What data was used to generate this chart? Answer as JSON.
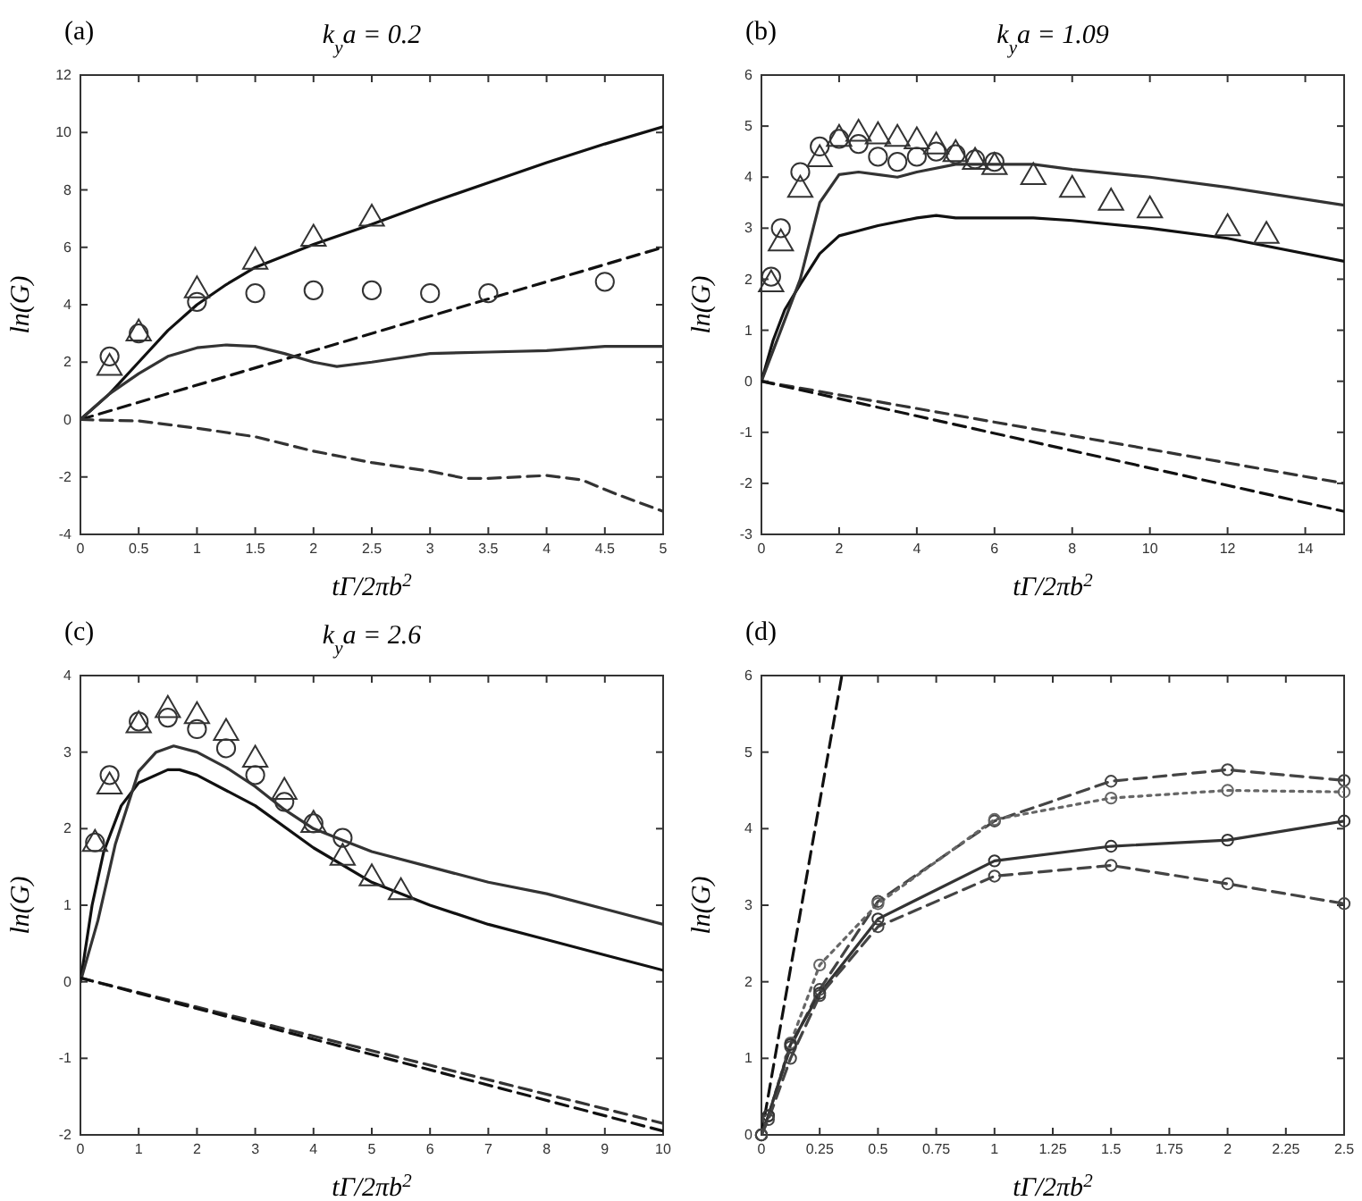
{
  "chart_data": [
    {
      "type": "line",
      "title": "k$_{y}$a = 0.2",
      "xlabel": "tΓ/2πb$^{2}$",
      "ylabel": "ln(G)",
      "annotations": [
        "(a)"
      ],
      "xlim": [
        0,
        5
      ],
      "ylim": [
        -4,
        12
      ],
      "xticks": [
        0,
        0.5,
        1,
        1.5,
        2,
        2.5,
        3,
        3.5,
        4,
        4.5,
        5
      ],
      "yticks": [
        -4,
        -2,
        0,
        2,
        4,
        6,
        8,
        10,
        12
      ],
      "series": [
        {
          "color": "#111111",
          "line_style": "solid",
          "x": [
            0,
            0.25,
            0.5,
            0.75,
            1,
            1.25,
            1.5,
            2,
            2.5,
            3,
            3.5,
            4,
            4.5,
            5
          ],
          "values": [
            0,
            0.9,
            2.0,
            3.1,
            4.0,
            4.7,
            5.3,
            6.1,
            6.8,
            7.55,
            8.25,
            8.95,
            9.6,
            10.2
          ]
        },
        {
          "color": "#111111",
          "line_style": "dashed",
          "x": [
            0,
            5
          ],
          "values": [
            0,
            6
          ]
        },
        {
          "color": "#333333",
          "line_style": "solid",
          "x": [
            0,
            0.25,
            0.5,
            0.75,
            1,
            1.25,
            1.5,
            1.75,
            2,
            2.2,
            2.5,
            3,
            3.5,
            4,
            4.5,
            5
          ],
          "values": [
            0,
            0.9,
            1.6,
            2.2,
            2.5,
            2.6,
            2.55,
            2.3,
            2.0,
            1.85,
            2.0,
            2.3,
            2.35,
            2.4,
            2.55,
            2.55
          ]
        },
        {
          "color": "#333333",
          "line_style": "dashed",
          "x": [
            0,
            0.5,
            1,
            1.5,
            2,
            2.5,
            3,
            3.3,
            3.5,
            4,
            4.3,
            4.6,
            5
          ],
          "values": [
            0,
            -0.05,
            -0.3,
            -0.6,
            -1.1,
            -1.5,
            -1.8,
            -2.05,
            -2.05,
            -1.95,
            -2.1,
            -2.6,
            -3.2
          ]
        },
        {
          "type": "scatter",
          "color": "#333333",
          "marker": "triangle",
          "x": [
            0.25,
            0.5,
            1,
            1.5,
            2,
            2.5
          ],
          "values": [
            1.8,
            3.0,
            4.5,
            5.5,
            6.3,
            7.0
          ]
        },
        {
          "type": "scatter",
          "color": "#333333",
          "marker": "circle",
          "x": [
            0.25,
            0.5,
            1,
            1.5,
            2,
            2.5,
            3,
            3.5,
            4.5
          ],
          "values": [
            2.2,
            3.0,
            4.1,
            4.4,
            4.5,
            4.5,
            4.4,
            4.4,
            4.8
          ]
        }
      ]
    },
    {
      "type": "line",
      "title": "k$_{y}$a = 1.09",
      "xlabel": "tΓ/2πb$^{2}$",
      "ylabel": "ln(G)",
      "annotations": [
        "(b)"
      ],
      "xlim": [
        0,
        15
      ],
      "ylim": [
        -3,
        6
      ],
      "xticks": [
        0,
        2,
        4,
        6,
        8,
        10,
        12,
        14
      ],
      "yticks": [
        -3,
        -2,
        -1,
        0,
        1,
        2,
        3,
        4,
        5,
        6
      ],
      "series": [
        {
          "color": "#111111",
          "line_style": "solid",
          "x": [
            0,
            0.3,
            0.6,
            1,
            1.5,
            2,
            2.5,
            3,
            4,
            4.5,
            5,
            6,
            7,
            8,
            10,
            12,
            15
          ],
          "values": [
            0,
            0.8,
            1.4,
            1.9,
            2.5,
            2.85,
            2.95,
            3.05,
            3.2,
            3.25,
            3.2,
            3.2,
            3.2,
            3.15,
            3.0,
            2.8,
            2.35
          ]
        },
        {
          "color": "#333333",
          "line_style": "solid",
          "x": [
            0,
            0.5,
            1,
            1.5,
            2,
            2.5,
            3,
            3.5,
            4,
            5,
            6,
            7,
            8,
            10,
            12,
            15
          ],
          "values": [
            0,
            1.0,
            2.0,
            3.5,
            4.05,
            4.1,
            4.05,
            4.0,
            4.1,
            4.25,
            4.25,
            4.25,
            4.15,
            4.0,
            3.8,
            3.45
          ]
        },
        {
          "color": "#333333",
          "line_style": "dashed",
          "x": [
            0,
            15
          ],
          "values": [
            0,
            -2.0
          ]
        },
        {
          "color": "#111111",
          "line_style": "dashed",
          "x": [
            0,
            15
          ],
          "values": [
            0,
            -2.55
          ]
        },
        {
          "type": "scatter",
          "color": "#333333",
          "marker": "circle",
          "x": [
            0.25,
            0.5,
            1,
            1.5,
            2,
            2.5,
            3,
            3.5,
            4,
            4.5,
            5,
            5.5,
            6
          ],
          "values": [
            2.05,
            3.0,
            4.1,
            4.6,
            4.75,
            4.65,
            4.4,
            4.3,
            4.4,
            4.5,
            4.45,
            4.35,
            4.3
          ]
        },
        {
          "type": "scatter",
          "color": "#333333",
          "marker": "triangle",
          "x": [
            0.25,
            0.5,
            1,
            1.5,
            2,
            2.5,
            3,
            3.5,
            4,
            4.5,
            5,
            5.5,
            6,
            7,
            8,
            9,
            10,
            12,
            13
          ],
          "values": [
            1.9,
            2.7,
            3.75,
            4.35,
            4.75,
            4.85,
            4.8,
            4.75,
            4.7,
            4.6,
            4.45,
            4.3,
            4.2,
            4.0,
            3.75,
            3.5,
            3.35,
            3.0,
            2.85
          ]
        }
      ]
    },
    {
      "type": "line",
      "title": "k$_{y}$a = 2.6",
      "xlabel": "tΓ/2πb$^{2}$",
      "ylabel": "ln(G)",
      "annotations": [
        "(c)"
      ],
      "xlim": [
        0,
        10
      ],
      "ylim": [
        -2,
        4
      ],
      "xticks": [
        0,
        1,
        2,
        3,
        4,
        5,
        6,
        7,
        8,
        9,
        10
      ],
      "yticks": [
        -2,
        -1,
        0,
        1,
        2,
        3,
        4
      ],
      "series": [
        {
          "color": "#111111",
          "line_style": "solid",
          "x": [
            0,
            0.2,
            0.4,
            0.7,
            1,
            1.5,
            1.7,
            2,
            3,
            4,
            5,
            6,
            7,
            8,
            9,
            10
          ],
          "values": [
            0,
            1.0,
            1.7,
            2.3,
            2.6,
            2.77,
            2.77,
            2.7,
            2.3,
            1.75,
            1.3,
            1.0,
            0.75,
            0.55,
            0.35,
            0.15
          ]
        },
        {
          "color": "#333333",
          "line_style": "solid",
          "x": [
            0,
            0.3,
            0.6,
            1,
            1.3,
            1.6,
            2,
            2.5,
            3,
            3.5,
            4,
            4.5,
            5,
            6,
            7,
            8,
            9,
            10
          ],
          "values": [
            0,
            0.8,
            1.8,
            2.75,
            3.0,
            3.08,
            3.0,
            2.8,
            2.55,
            2.25,
            2.0,
            1.85,
            1.7,
            1.5,
            1.3,
            1.15,
            0.95,
            0.75
          ]
        },
        {
          "color": "#333333",
          "line_style": "dashed",
          "x": [
            0,
            10
          ],
          "values": [
            0.05,
            -1.85
          ]
        },
        {
          "color": "#111111",
          "line_style": "dashed",
          "x": [
            0,
            10
          ],
          "values": [
            0.05,
            -1.95
          ]
        },
        {
          "type": "scatter",
          "color": "#333333",
          "marker": "circle",
          "x": [
            0.25,
            0.5,
            1,
            1.5,
            2,
            2.5,
            3,
            3.5,
            4,
            4.5
          ],
          "values": [
            1.82,
            2.7,
            3.4,
            3.45,
            3.3,
            3.05,
            2.7,
            2.35,
            2.07,
            1.88
          ]
        },
        {
          "type": "scatter",
          "color": "#333333",
          "marker": "triangle",
          "x": [
            0.25,
            0.5,
            1,
            1.5,
            2,
            2.5,
            3,
            3.5,
            4,
            4.5,
            5,
            5.5
          ],
          "values": [
            1.8,
            2.55,
            3.35,
            3.55,
            3.47,
            3.25,
            2.9,
            2.48,
            2.05,
            1.62,
            1.35,
            1.17
          ]
        }
      ]
    },
    {
      "type": "line",
      "xlabel": "tΓ/2πb$^{2}$",
      "ylabel": "ln(G)",
      "annotations": [
        "(d)"
      ],
      "xlim": [
        0,
        2.5
      ],
      "ylim": [
        0,
        6
      ],
      "xticks": [
        0,
        0.25,
        0.5,
        0.75,
        1,
        1.25,
        1.5,
        1.75,
        2,
        2.25,
        2.5
      ],
      "yticks": [
        0,
        1,
        2,
        3,
        4,
        5,
        6
      ],
      "series": [
        {
          "color": "#111111",
          "line_style": "dashed",
          "x": [
            0,
            0.345
          ],
          "values": [
            0,
            6
          ]
        },
        {
          "color": "#444444",
          "line_style": "dashed",
          "marker": "circle",
          "x": [
            0,
            0.03,
            0.125,
            0.25,
            0.5,
            1,
            1.5,
            2,
            2.5
          ],
          "values": [
            0,
            0.25,
            1.15,
            1.9,
            3.05,
            4.1,
            4.62,
            4.77,
            4.63
          ]
        },
        {
          "color": "#666666",
          "line_style": "dotted",
          "marker": "circle",
          "x": [
            0,
            0.03,
            0.125,
            0.25,
            0.5,
            1,
            1.5,
            2,
            2.5
          ],
          "values": [
            0,
            0.25,
            1.2,
            2.22,
            3.02,
            4.12,
            4.4,
            4.5,
            4.48
          ]
        },
        {
          "color": "#333333",
          "line_style": "solid",
          "marker": "circle",
          "x": [
            0,
            0.03,
            0.125,
            0.25,
            0.5,
            1,
            1.5,
            2,
            2.5
          ],
          "values": [
            0,
            0.25,
            1.18,
            1.85,
            2.82,
            3.58,
            3.77,
            3.85,
            4.1
          ]
        },
        {
          "color": "#444444",
          "line_style": "dashed",
          "marker": "circle",
          "x": [
            0,
            0.03,
            0.125,
            0.25,
            0.5,
            1,
            1.5,
            2,
            2.5
          ],
          "values": [
            0,
            0.2,
            1.0,
            1.82,
            2.72,
            3.38,
            3.52,
            3.28,
            3.02
          ]
        }
      ]
    }
  ]
}
